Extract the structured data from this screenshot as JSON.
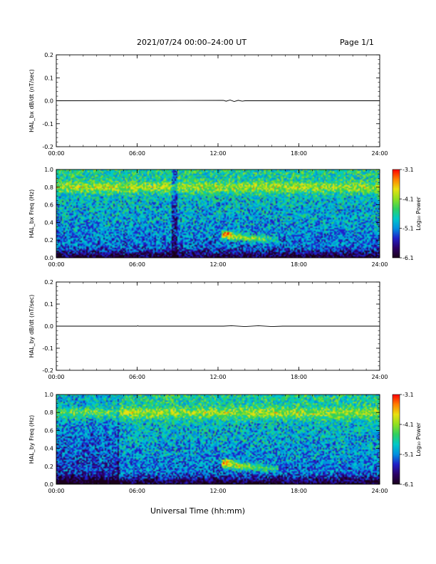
{
  "header": {
    "title": "2021/07/24  00:00–24:00 UT",
    "page_label": "Page 1/1"
  },
  "xaxis_label": "Universal Time (hh:mm)",
  "colors": {
    "axis": "#000000",
    "colormap": [
      "#1a001a",
      "#2b0066",
      "#2020c8",
      "#0090e0",
      "#00c8c8",
      "#30d060",
      "#90e020",
      "#e8e010",
      "#ff8000",
      "#ff0000"
    ]
  },
  "chart_data": [
    {
      "type": "line",
      "ylabel": "HAL_bx dB/dt (nT/sec)",
      "ylim": [
        -0.2,
        0.2
      ],
      "yticks": [
        "0.2",
        "0.1",
        "0.0",
        "-0.1",
        "-0.2"
      ],
      "xlim_hours": [
        0,
        24
      ],
      "xticks": [
        "00:00",
        "06:00",
        "12:00",
        "18:00",
        "24:00"
      ],
      "series": [
        {
          "x_hours": [
            0,
            12.4,
            12.6,
            12.9,
            13.2,
            13.5,
            13.8,
            14.0,
            24
          ],
          "values": [
            0.0,
            0.002,
            -0.002,
            0.003,
            -0.003,
            0.002,
            -0.002,
            0.0,
            0.0
          ]
        }
      ]
    },
    {
      "type": "heatmap",
      "ylabel": "HAL_bx Freq (Hz)",
      "ylim": [
        0,
        1.0
      ],
      "yticks": [
        "1.0",
        "0.8",
        "0.6",
        "0.4",
        "0.2",
        "0.0"
      ],
      "xlim_hours": [
        0,
        24
      ],
      "xticks": [
        "00:00",
        "06:00",
        "12:00",
        "18:00",
        "24:00"
      ],
      "colorbar": {
        "label": "Log₁₀ Power",
        "range": [
          -6.1,
          -3.1
        ],
        "ticks": [
          "-3.1",
          "-4.1",
          "-5.1",
          "-6.1"
        ]
      },
      "features": {
        "band_freq_hz": 0.8,
        "event_start_h": 12.3,
        "event_end_h": 16.5,
        "event_freq_hz": 0.25,
        "peak_h": 12.7,
        "peak_freq_hz": 0.28,
        "vertical_dark_h": [
          8.5,
          9.0
        ]
      }
    },
    {
      "type": "line",
      "ylabel": "HAL_by dB/dt (nT/sec)",
      "ylim": [
        -0.2,
        0.2
      ],
      "yticks": [
        "0.2",
        "0.1",
        "0.0",
        "-0.1",
        "-0.2"
      ],
      "xlim_hours": [
        0,
        24
      ],
      "xticks": [
        "00:00",
        "06:00",
        "12:00",
        "18:00",
        "24:00"
      ],
      "series": [
        {
          "x_hours": [
            0,
            6.0,
            6.05,
            6.1,
            12.4,
            13.0,
            14.0,
            15.0,
            16.0,
            16.8,
            24
          ],
          "values": [
            0.0,
            0.0,
            0.002,
            0.0,
            0.0,
            0.002,
            -0.002,
            0.002,
            -0.002,
            0.0,
            0.0
          ]
        }
      ]
    },
    {
      "type": "heatmap",
      "ylabel": "HAL_by Freq (Hz)",
      "ylim": [
        0,
        1.0
      ],
      "yticks": [
        "1.0",
        "0.8",
        "0.6",
        "0.4",
        "0.2",
        "0.0"
      ],
      "xlim_hours": [
        0,
        24
      ],
      "xticks": [
        "00:00",
        "06:00",
        "12:00",
        "18:00",
        "24:00"
      ],
      "colorbar": {
        "label": "Log₁₀ Power",
        "range": [
          -6.1,
          -3.1
        ],
        "ticks": [
          "-3.1",
          "-4.1",
          "-5.1",
          "-6.1"
        ]
      },
      "features": {
        "band_freq_hz": 0.8,
        "event_start_h": 12.3,
        "event_end_h": 16.5,
        "event_freq_hz": 0.22,
        "peak_h": 12.7,
        "peak_freq_hz": 0.25,
        "vertical_dark_h": [
          4.5,
          4.6
        ]
      }
    }
  ]
}
